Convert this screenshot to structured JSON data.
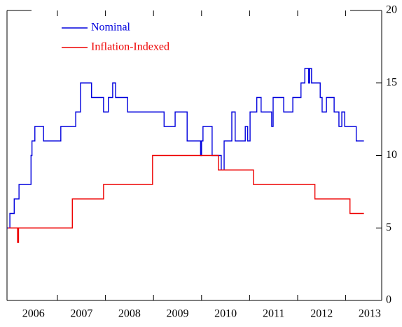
{
  "chart_data": {
    "type": "line",
    "step": true,
    "legend": "upper left",
    "x_axis_position": "bottom",
    "y_axis_position": "right",
    "xlim": [
      2005.95,
      2013.75
    ],
    "xticks": [
      {
        "value": 2006.5,
        "label": "2006"
      },
      {
        "value": 2007.5,
        "label": "2007"
      },
      {
        "value": 2008.5,
        "label": "2008"
      },
      {
        "value": 2009.5,
        "label": "2009"
      },
      {
        "value": 2010.5,
        "label": "2010"
      },
      {
        "value": 2011.5,
        "label": "2011"
      },
      {
        "value": 2012.5,
        "label": "2012"
      },
      {
        "value": 2013.5,
        "label": "2013"
      }
    ],
    "ylim": [
      0,
      20
    ],
    "yticks": [
      0,
      5,
      10,
      15,
      20
    ],
    "series": [
      {
        "name": "Nominal",
        "color": "#0000dd",
        "x": [
          2005.95,
          2006.01,
          2006.1,
          2006.2,
          2006.45,
          2006.47,
          2006.53,
          2006.71,
          2007.07,
          2007.38,
          2007.48,
          2007.71,
          2007.96,
          2008.06,
          2008.15,
          2008.21,
          2008.46,
          2009.22,
          2009.45,
          2009.7,
          2009.98,
          2010.0,
          2010.03,
          2010.22,
          2010.41,
          2010.47,
          2010.63,
          2010.7,
          2010.91,
          2010.96,
          2011.01,
          2011.15,
          2011.24,
          2011.46,
          2011.49,
          2011.71,
          2011.9,
          2012.07,
          2012.15,
          2012.23,
          2012.25,
          2012.29,
          2012.47,
          2012.51,
          2012.6,
          2012.76,
          2012.86,
          2012.92,
          2012.98,
          2013.22,
          2013.38
        ],
        "values": [
          5,
          6,
          7,
          8,
          10,
          11,
          12,
          11,
          12,
          13,
          15,
          14,
          13,
          14,
          15,
          14,
          13,
          12,
          13,
          11,
          10,
          11,
          12,
          10,
          9,
          11,
          13,
          11,
          12,
          11,
          13,
          14,
          13,
          12,
          14,
          13,
          14,
          15,
          16,
          15,
          16,
          15,
          14,
          13,
          14,
          13,
          12,
          13,
          12,
          11,
          11
        ]
      },
      {
        "name": "Inflation-Indexed",
        "color": "#ee0000",
        "x": [
          2005.97,
          2006.17,
          2006.19,
          2007.31,
          2007.96,
          2008.98,
          2010.35,
          2011.08,
          2012.36,
          2013.09,
          2013.38
        ],
        "values": [
          5,
          4,
          5,
          7,
          8,
          10,
          9,
          8,
          7,
          6,
          6
        ]
      }
    ]
  }
}
